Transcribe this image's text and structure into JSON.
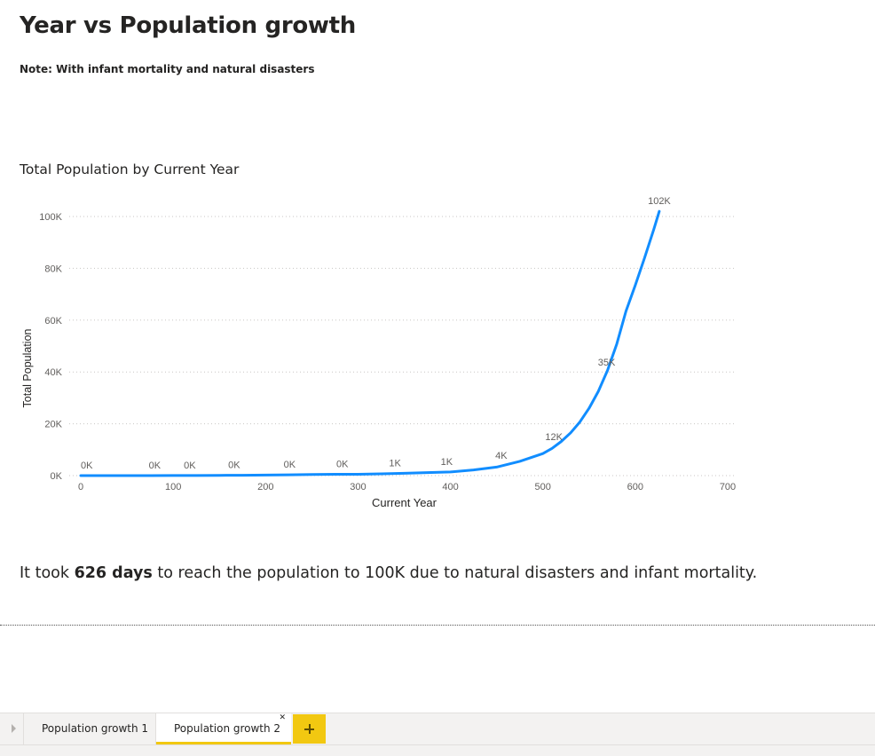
{
  "page": {
    "title": "Year vs Population growth",
    "note": "Note: With infant mortality and natural disasters"
  },
  "summary": {
    "prefix": "It took ",
    "highlight": "626 days",
    "suffix": " to reach the population to 100K due to natural disasters and infant mortality."
  },
  "tabs": [
    {
      "label": "Population growth 1",
      "active": false
    },
    {
      "label": "Population growth 2",
      "active": true
    }
  ],
  "icons": {
    "tab_close": "close-icon",
    "tab_add": "plus-icon",
    "tab_nav": "chevron-right-icon"
  },
  "colors": {
    "line": "#118DFF",
    "accent": "#F2C811",
    "text": "#252423",
    "axis_text": "#605E5C",
    "grid": "#C8C6C4"
  },
  "chart_data": {
    "type": "line",
    "title": "Total Population by Current Year",
    "xlabel": "Current Year",
    "ylabel": "Total Population",
    "xlim": [
      0,
      700
    ],
    "ylim": [
      0,
      100000
    ],
    "x_ticks": [
      0,
      100,
      200,
      300,
      400,
      500,
      600,
      700
    ],
    "y_ticks": [
      0,
      20000,
      40000,
      60000,
      80000,
      100000
    ],
    "y_tick_labels": [
      "0K",
      "20K",
      "40K",
      "60K",
      "80K",
      "100K"
    ],
    "grid": "horizontal-dotted",
    "series": [
      {
        "x": [
          0,
          25,
          50,
          75,
          100,
          125,
          150,
          175,
          200,
          225,
          250,
          275,
          300,
          325,
          350,
          375,
          400,
          425,
          450,
          475,
          500,
          510,
          520,
          530,
          540,
          550,
          560,
          570,
          580,
          590,
          600,
          610,
          620,
          626
        ],
        "y": [
          2,
          4,
          8,
          15,
          30,
          50,
          90,
          140,
          220,
          300,
          400,
          500,
          520,
          700,
          900,
          1150,
          1400,
          2200,
          3300,
          5500,
          8500,
          10500,
          13200,
          16500,
          20700,
          26000,
          32500,
          40600,
          50800,
          63500,
          73500,
          84000,
          95000,
          102000
        ]
      }
    ],
    "data_labels": [
      {
        "x": 0,
        "text": "0K"
      },
      {
        "x": 80,
        "text": "0K"
      },
      {
        "x": 118,
        "text": "0K"
      },
      {
        "x": 166,
        "text": "0K"
      },
      {
        "x": 226,
        "text": "0K"
      },
      {
        "x": 283,
        "text": "0K"
      },
      {
        "x": 340,
        "text": "1K"
      },
      {
        "x": 396,
        "text": "1K"
      },
      {
        "x": 455,
        "text": "4K"
      },
      {
        "x": 512,
        "text": "12K"
      },
      {
        "x": 569,
        "text": "35K"
      },
      {
        "x": 626,
        "text": "102K"
      }
    ]
  }
}
